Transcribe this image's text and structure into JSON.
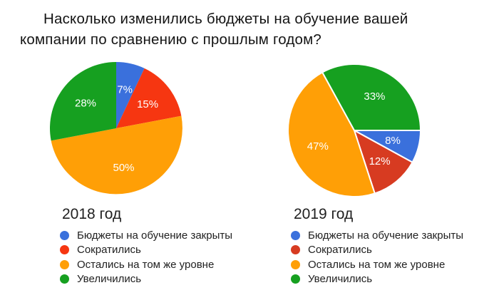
{
  "title": {
    "line1": "Насколько изменились бюджеты на обучение вашей",
    "line2": "компании по сравнению с прошлым годом?"
  },
  "colors": {
    "blue": "#3A70DC",
    "red_2018": "#F63611",
    "red_2019": "#D73B21",
    "orange": "#FF9F06",
    "green": "#16A020",
    "label_text": "#ffffff",
    "body_text": "#212121"
  },
  "chart_data": [
    {
      "type": "pie",
      "title": "2018 год",
      "categories": [
        "Бюджеты на обучение закрыты",
        "Сократились",
        "Остались на том же уровне",
        "Увеличились"
      ],
      "values": [
        7,
        15,
        50,
        28
      ],
      "unit": "%",
      "slice_colors": [
        "#3A70DC",
        "#F63611",
        "#FF9F06",
        "#16A020"
      ],
      "start_angle_deg": 0,
      "slice_stroke_width": 0,
      "legend_position": "bottom",
      "labels_on_slices": [
        "7%",
        "15%",
        "50%",
        "28%"
      ]
    },
    {
      "type": "pie",
      "title": "2019 год",
      "categories": [
        "Бюджеты на обучение закрыты",
        "Сократились",
        "Остались на том же уровне",
        "Увеличились"
      ],
      "values": [
        8,
        12,
        47,
        33
      ],
      "unit": "%",
      "slice_colors": [
        "#3A70DC",
        "#D73B21",
        "#FF9F06",
        "#16A020"
      ],
      "start_angle_deg": 90,
      "slice_stroke_width": 2,
      "legend_position": "bottom",
      "labels_on_slices": [
        "8%",
        "12%",
        "47%",
        "33%"
      ]
    }
  ]
}
